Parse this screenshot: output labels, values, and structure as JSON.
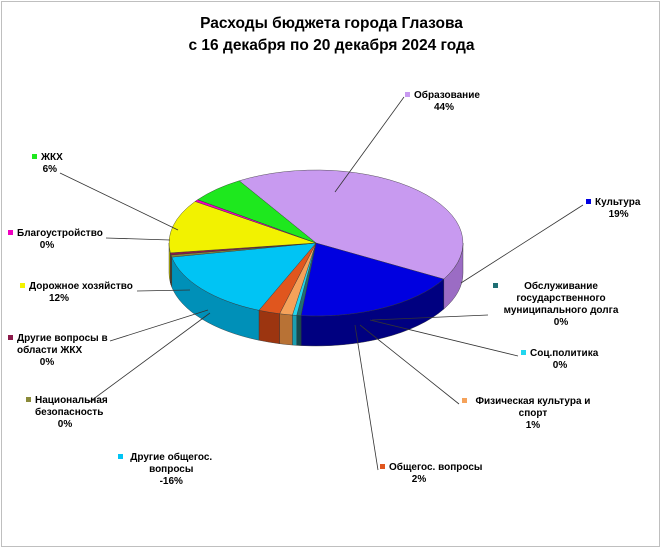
{
  "chart_data": {
    "type": "pie",
    "title": "Расходы бюджета города Глазова",
    "subtitle": "с 16 декабря по 20 декабря 2024 года",
    "slices": [
      {
        "name": "Образование",
        "value": 44,
        "label": "44%",
        "color": "#c89af0",
        "side": "#9b6cc4"
      },
      {
        "name": "Культура",
        "value": 19,
        "label": "19%",
        "color": "#0000e0",
        "side": "#000080"
      },
      {
        "name": "Обслуживание государственного муниципального долга",
        "value": 0,
        "label": "0%",
        "color": "#1f6f74",
        "side": "#144a4d"
      },
      {
        "name": "Соц.политика",
        "value": 0,
        "label": "0%",
        "color": "#22d6ee",
        "side": "#1a9fb0"
      },
      {
        "name": "Физическая культура и спорт",
        "value": 1,
        "label": "1%",
        "color": "#f5a25a",
        "side": "#b87235"
      },
      {
        "name": "Общегос. вопросы",
        "value": 2,
        "label": "2%",
        "color": "#e0561e",
        "side": "#9c3510"
      },
      {
        "name": "Другие общегос. вопросы",
        "value": -16,
        "label": "-16%",
        "color": "#00c4f4",
        "side": "#0090b8"
      },
      {
        "name": "Национальная безопасность",
        "value": 0,
        "label": "0%",
        "color": "#8a8a3a",
        "side": "#5e5e28"
      },
      {
        "name": "Другие вопросы в области ЖКХ",
        "value": 0,
        "label": "0%",
        "color": "#8b1a4a",
        "side": "#5e1030"
      },
      {
        "name": "Дорожное хозяйство",
        "value": 12,
        "label": "12%",
        "color": "#f2f200",
        "side": "#b5b500"
      },
      {
        "name": "Благоустройство",
        "value": 0,
        "label": "0%",
        "color": "#f000c0",
        "side": "#a80088"
      },
      {
        "name": "ЖКХ",
        "value": 6,
        "label": "6%",
        "color": "#1ee81e",
        "side": "#12a812"
      }
    ]
  }
}
